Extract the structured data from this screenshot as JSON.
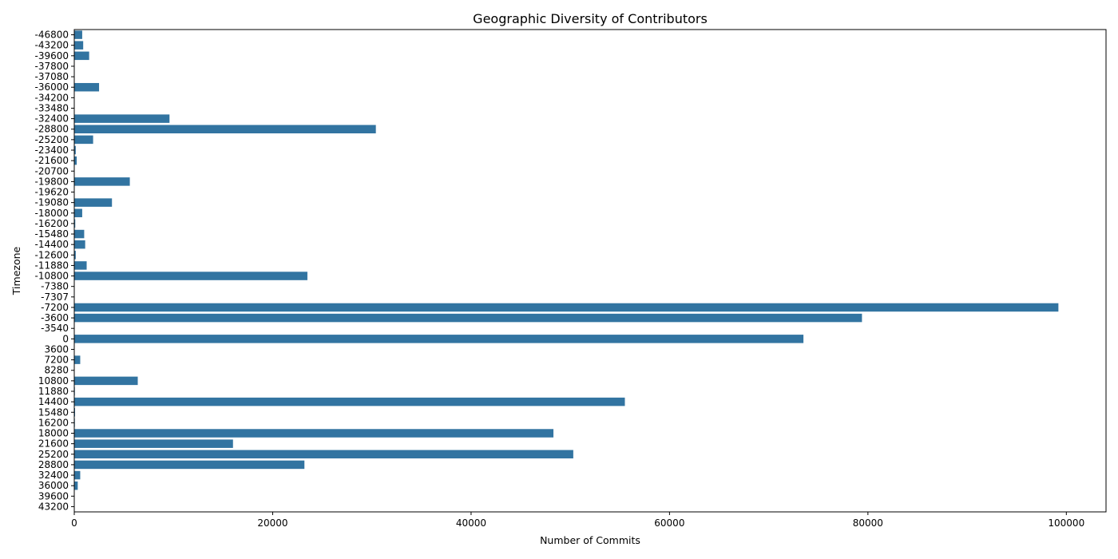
{
  "chart_data": {
    "type": "bar",
    "orientation": "horizontal",
    "title": "Geographic Diversity of Contributors",
    "xlabel": "Number of Commits",
    "ylabel": "Timezone",
    "xlim": [
      0,
      104000
    ],
    "xticks": [
      0,
      20000,
      40000,
      60000,
      80000,
      100000
    ],
    "grid": false,
    "bar_color": "#3274a1",
    "categories": [
      "-46800",
      "-43200",
      "-39600",
      "-37800",
      "-37080",
      "-36000",
      "-34200",
      "-33480",
      "-32400",
      "-28800",
      "-25200",
      "-23400",
      "-21600",
      "-20700",
      "-19800",
      "-19620",
      "-19080",
      "-18000",
      "-16200",
      "-15480",
      "-14400",
      "-12600",
      "-11880",
      "-10800",
      "-7380",
      "-7307",
      "-7200",
      "-3600",
      "-3540",
      "0",
      "3600",
      "7200",
      "8280",
      "10800",
      "11880",
      "14400",
      "15480",
      "16200",
      "18000",
      "21600",
      "25200",
      "28800",
      "32400",
      "36000",
      "39600",
      "43200"
    ],
    "values": [
      800,
      900,
      1500,
      20,
      20,
      2500,
      30,
      40,
      9600,
      30400,
      1900,
      150,
      250,
      20,
      5600,
      20,
      3800,
      800,
      100,
      1000,
      1100,
      150,
      1250,
      23500,
      30,
      20,
      99200,
      79400,
      20,
      73500,
      20,
      600,
      20,
      6400,
      60,
      55500,
      80,
      60,
      48300,
      16000,
      50300,
      23200,
      600,
      350,
      40,
      20
    ]
  }
}
